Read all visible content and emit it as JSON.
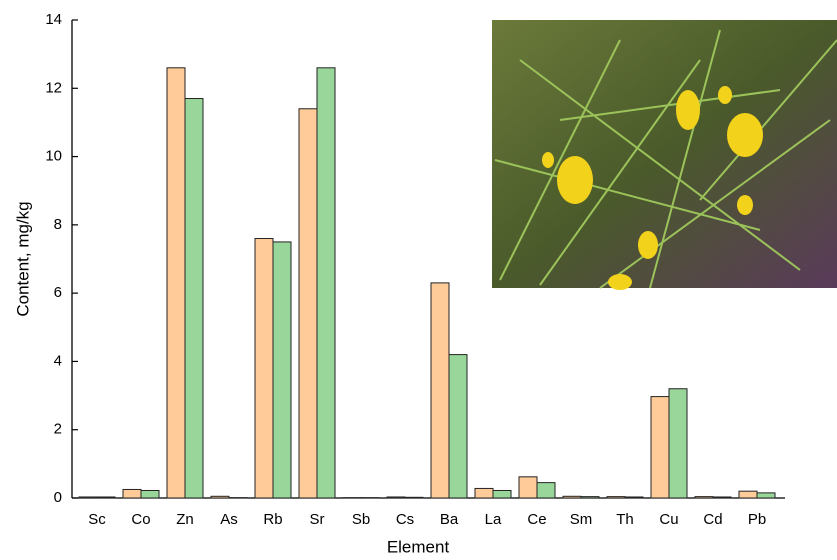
{
  "chart_data": {
    "type": "bar",
    "x_label": "Element",
    "y_label": "Content, mg/kg",
    "categories": [
      "Sc",
      "Co",
      "Zn",
      "As",
      "Rb",
      "Sr",
      "Sb",
      "Cs",
      "Ba",
      "La",
      "Ce",
      "Sm",
      "Th",
      "Cu",
      "Cd",
      "Pb"
    ],
    "series": [
      {
        "color": "#ffcc99",
        "values": [
          0.03,
          0.25,
          12.6,
          0.05,
          7.6,
          11.4,
          0.01,
          0.03,
          6.3,
          0.28,
          0.62,
          0.05,
          0.04,
          2.97,
          0.04,
          0.2
        ]
      },
      {
        "color": "#99d699",
        "values": [
          0.03,
          0.22,
          11.7,
          0.01,
          7.5,
          12.6,
          0.01,
          0.02,
          4.2,
          0.22,
          0.45,
          0.04,
          0.03,
          3.2,
          0.03,
          0.15
        ]
      }
    ],
    "ylim": [
      0,
      14
    ],
    "yticks": [
      0,
      2,
      4,
      6,
      8,
      10,
      12,
      14
    ]
  }
}
